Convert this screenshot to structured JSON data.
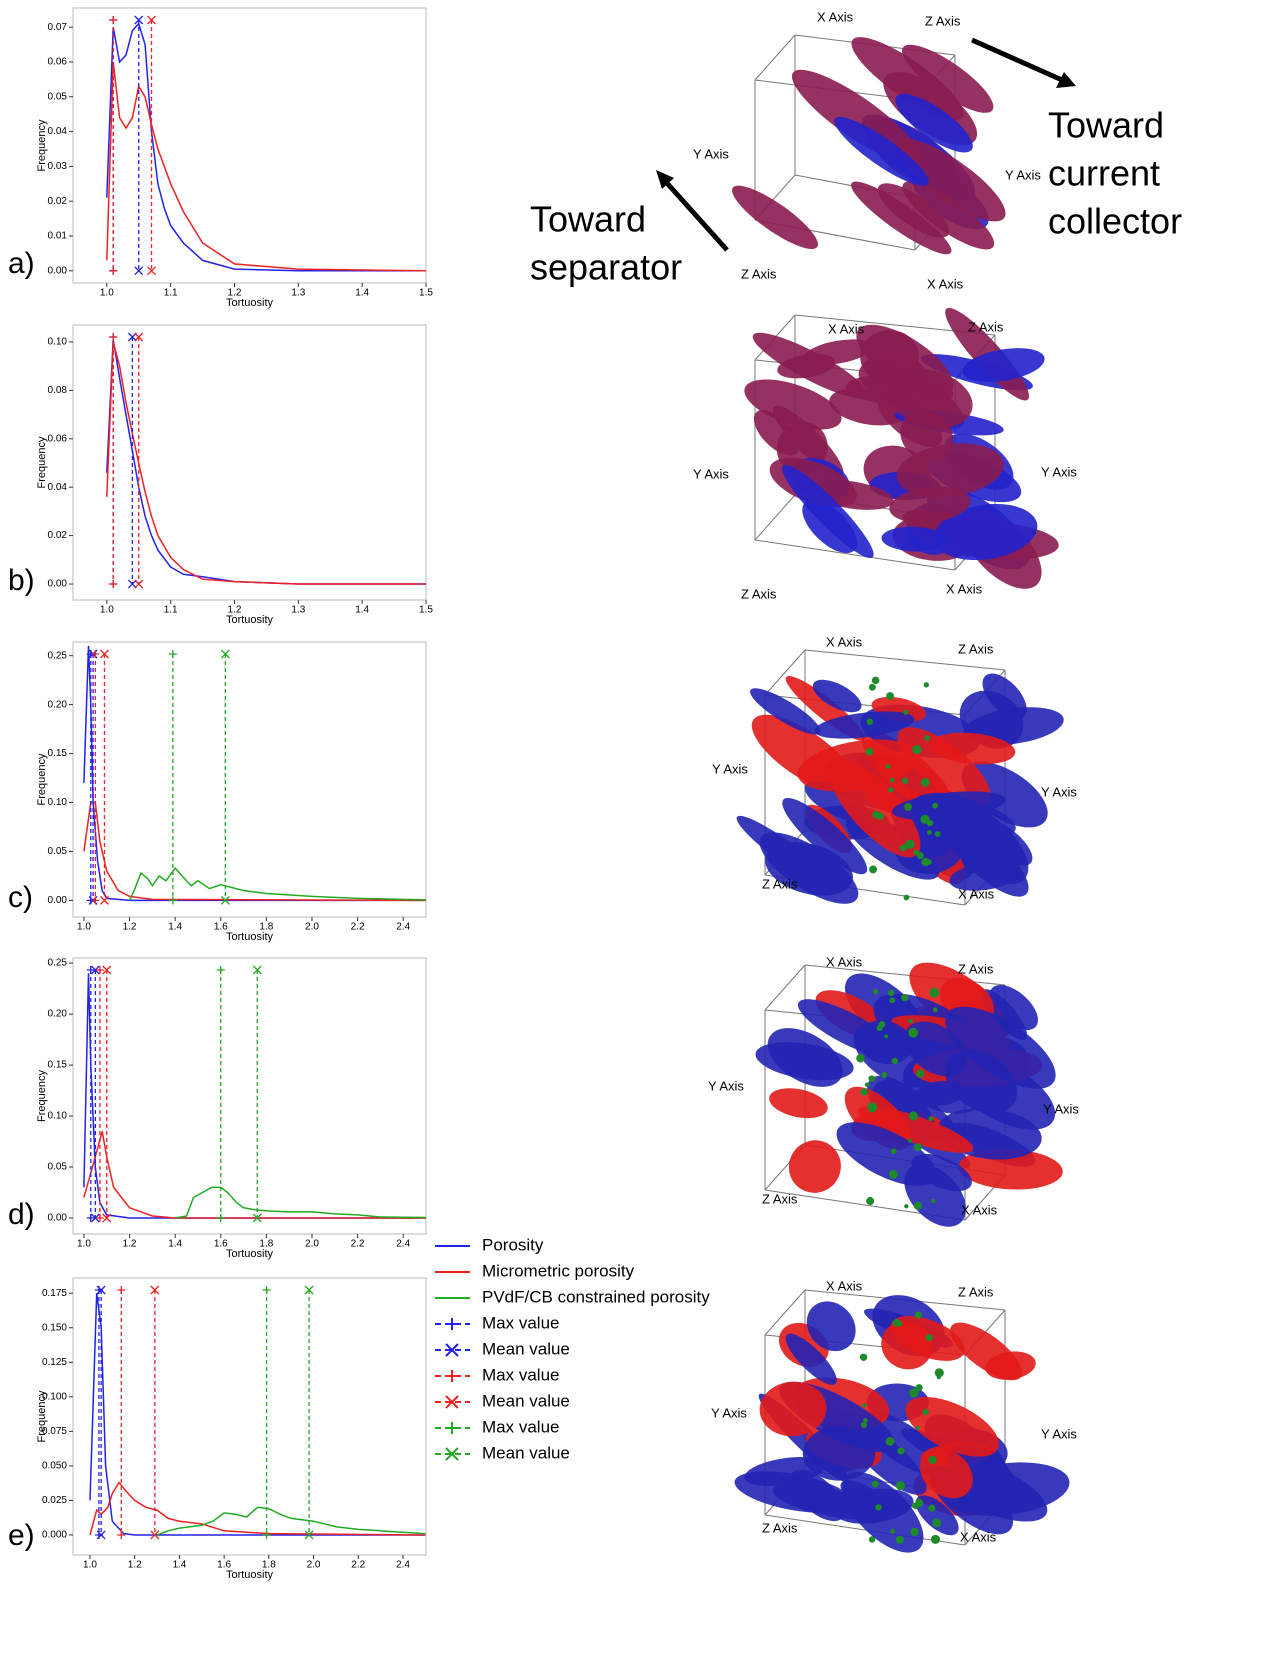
{
  "chart_data": [
    {
      "type": "line",
      "panel": "a)",
      "xlabel": "Tortuosity",
      "ylabel": "Frequency",
      "xlim": [
        0.947,
        1.5
      ],
      "xticks": [
        {
          "value": 1.0,
          "label": "1.0"
        },
        1.1,
        1.2,
        1.3,
        1.4,
        1.5
      ],
      "ylim": [
        -0.0035,
        0.0755
      ],
      "yticks": [
        {
          "value": 0,
          "label": "0.00"
        },
        0.01,
        0.02,
        0.03,
        0.04,
        0.05,
        0.06,
        0.07
      ],
      "series": [
        {
          "color": "#2222ee",
          "x": [
            1.0,
            1.01,
            1.02,
            1.03,
            1.04,
            1.05,
            1.06,
            1.07,
            1.08,
            1.09,
            1.1,
            1.12,
            1.15,
            1.2,
            1.3,
            1.5
          ],
          "values": [
            0.021,
            0.07,
            0.06,
            0.062,
            0.069,
            0.071,
            0.065,
            0.04,
            0.025,
            0.018,
            0.013,
            0.008,
            0.003,
            0.0005,
            0,
            0
          ]
        },
        {
          "color": "#ee2222",
          "x": [
            1.0,
            1.01,
            1.02,
            1.03,
            1.04,
            1.05,
            1.06,
            1.07,
            1.08,
            1.09,
            1.1,
            1.12,
            1.15,
            1.2,
            1.3,
            1.5
          ],
          "values": [
            0.003,
            0.06,
            0.044,
            0.041,
            0.044,
            0.053,
            0.05,
            0.042,
            0.035,
            0.03,
            0.025,
            0.017,
            0.008,
            0.002,
            0.0005,
            0
          ]
        }
      ],
      "vlines": [
        {
          "x": 1.01,
          "color": "#2222ee",
          "marker": "+"
        },
        {
          "x": 1.05,
          "color": "#2222ee",
          "marker": "x"
        },
        {
          "x": 1.01,
          "color": "#ee2222",
          "marker": "+"
        },
        {
          "x": 1.07,
          "color": "#ee2222",
          "marker": "x"
        }
      ]
    },
    {
      "type": "line",
      "panel": "b)",
      "xlabel": "Tortuosity",
      "ylabel": "Frequency",
      "xlim": [
        0.947,
        1.5
      ],
      "xticks": [
        {
          "value": 1.0,
          "label": "1.0"
        },
        1.1,
        1.2,
        1.3,
        1.4,
        1.5
      ],
      "ylim": [
        -0.0066,
        0.107
      ],
      "yticks": [
        {
          "value": 0,
          "label": "0.00"
        },
        0.02,
        0.04,
        0.06,
        0.08,
        {
          "value": 0.1,
          "label": "0.10"
        }
      ],
      "series": [
        {
          "color": "#2222ee",
          "x": [
            1.0,
            1.01,
            1.02,
            1.03,
            1.04,
            1.05,
            1.06,
            1.07,
            1.08,
            1.1,
            1.12,
            1.15,
            1.2,
            1.3,
            1.5
          ],
          "values": [
            0.046,
            0.101,
            0.085,
            0.07,
            0.055,
            0.04,
            0.028,
            0.02,
            0.014,
            0.007,
            0.004,
            0.003,
            0.001,
            0,
            0
          ]
        },
        {
          "color": "#ee2222",
          "x": [
            1.0,
            1.01,
            1.02,
            1.03,
            1.04,
            1.05,
            1.06,
            1.07,
            1.08,
            1.1,
            1.12,
            1.15,
            1.2,
            1.3,
            1.5
          ],
          "values": [
            0.036,
            0.1,
            0.09,
            0.075,
            0.062,
            0.05,
            0.038,
            0.028,
            0.02,
            0.011,
            0.006,
            0.002,
            0.001,
            0,
            0
          ]
        }
      ],
      "vlines": [
        {
          "x": 1.01,
          "color": "#2222ee",
          "marker": "+"
        },
        {
          "x": 1.04,
          "color": "#2222ee",
          "marker": "x"
        },
        {
          "x": 1.01,
          "color": "#ee2222",
          "marker": "+"
        },
        {
          "x": 1.05,
          "color": "#ee2222",
          "marker": "x"
        }
      ]
    },
    {
      "type": "line",
      "panel": "c)",
      "xlabel": "Tortuosity",
      "ylabel": "Frequency",
      "xlim": [
        0.952,
        2.5
      ],
      "xticks": [
        {
          "value": 1.0,
          "label": "1.0"
        },
        1.2,
        1.4,
        1.6,
        1.8,
        {
          "value": 2.0,
          "label": "2.0"
        },
        2.2,
        2.4
      ],
      "ylim": [
        -0.017,
        0.264
      ],
      "yticks": [
        {
          "value": 0,
          "label": "0.00"
        },
        0.05,
        {
          "value": 0.1,
          "label": "0.10"
        },
        0.15,
        {
          "value": 0.2,
          "label": "0.20"
        },
        0.25
      ],
      "series": [
        {
          "color": "#2222ee",
          "x": [
            1.0,
            1.02,
            1.03,
            1.04,
            1.06,
            1.08,
            1.1,
            1.2,
            2.5
          ],
          "values": [
            0.12,
            0.26,
            0.2,
            0.1,
            0.04,
            0.01,
            0.002,
            0,
            0
          ]
        },
        {
          "color": "#ee2222",
          "x": [
            1.0,
            1.03,
            1.05,
            1.07,
            1.1,
            1.15,
            1.2,
            1.3,
            2.5
          ],
          "values": [
            0.05,
            0.1,
            0.1,
            0.06,
            0.03,
            0.01,
            0.004,
            0.001,
            0
          ]
        },
        {
          "color": "#22aa22",
          "x": [
            1.2,
            1.22,
            1.25,
            1.28,
            1.3,
            1.33,
            1.36,
            1.4,
            1.43,
            1.47,
            1.5,
            1.55,
            1.6,
            1.7,
            1.8,
            2.0,
            2.2,
            2.5
          ],
          "values": [
            0,
            0.01,
            0.028,
            0.022,
            0.015,
            0.025,
            0.02,
            0.033,
            0.025,
            0.015,
            0.02,
            0.012,
            0.016,
            0.01,
            0.007,
            0.004,
            0.002,
            0.0005
          ]
        }
      ],
      "vlines": [
        {
          "x": 1.03,
          "color": "#2222ee",
          "marker": "+"
        },
        {
          "x": 1.04,
          "color": "#2222ee",
          "marker": "x"
        },
        {
          "x": 1.05,
          "color": "#ee2222",
          "marker": "+"
        },
        {
          "x": 1.09,
          "color": "#ee2222",
          "marker": "x"
        },
        {
          "x": 1.39,
          "color": "#22aa22",
          "marker": "+"
        },
        {
          "x": 1.62,
          "color": "#22aa22",
          "marker": "x"
        }
      ]
    },
    {
      "type": "line",
      "panel": "d)",
      "xlabel": "Tortuosity",
      "ylabel": "Frequency",
      "xlim": [
        0.952,
        2.5
      ],
      "xticks": [
        {
          "value": 1.0,
          "label": "1.0"
        },
        1.2,
        1.4,
        1.6,
        1.8,
        {
          "value": 2.0,
          "label": "2.0"
        },
        2.2,
        2.4
      ],
      "ylim": [
        -0.0157,
        0.255
      ],
      "yticks": [
        {
          "value": 0,
          "label": "0.00"
        },
        0.05,
        {
          "value": 0.1,
          "label": "0.10"
        },
        0.15,
        {
          "value": 0.2,
          "label": "0.20"
        },
        0.25
      ],
      "series": [
        {
          "color": "#2222ee",
          "x": [
            1.0,
            1.02,
            1.03,
            1.05,
            1.07,
            1.1,
            1.2,
            2.5
          ],
          "values": [
            0.03,
            0.24,
            0.15,
            0.05,
            0.015,
            0.003,
            0,
            0
          ]
        },
        {
          "color": "#ee2222",
          "x": [
            1.0,
            1.05,
            1.08,
            1.1,
            1.13,
            1.2,
            1.3,
            1.4,
            2.5
          ],
          "values": [
            0.02,
            0.06,
            0.085,
            0.06,
            0.03,
            0.01,
            0.002,
            0,
            0
          ]
        },
        {
          "color": "#22aa22",
          "x": [
            1.4,
            1.45,
            1.48,
            1.52,
            1.56,
            1.6,
            1.63,
            1.67,
            1.7,
            1.75,
            1.8,
            1.9,
            2.0,
            2.1,
            2.2,
            2.3,
            2.5
          ],
          "values": [
            0,
            0.002,
            0.02,
            0.025,
            0.03,
            0.03,
            0.025,
            0.015,
            0.01,
            0.008,
            0.007,
            0.006,
            0.006,
            0.004,
            0.003,
            0.001,
            0.0005
          ]
        }
      ],
      "vlines": [
        {
          "x": 1.03,
          "color": "#2222ee",
          "marker": "+"
        },
        {
          "x": 1.05,
          "color": "#2222ee",
          "marker": "x"
        },
        {
          "x": 1.07,
          "color": "#ee2222",
          "marker": "+"
        },
        {
          "x": 1.1,
          "color": "#ee2222",
          "marker": "x"
        },
        {
          "x": 1.6,
          "color": "#22aa22",
          "marker": "+"
        },
        {
          "x": 1.76,
          "color": "#22aa22",
          "marker": "x"
        }
      ]
    },
    {
      "type": "line",
      "panel": "e)",
      "xlabel": "Tortuosity",
      "ylabel": "Frequency",
      "xlim": [
        0.924,
        2.503
      ],
      "xticks": [
        {
          "value": 1.0,
          "label": "1.0"
        },
        1.2,
        1.4,
        1.6,
        1.8,
        {
          "value": 2.0,
          "label": "2.0"
        },
        2.2,
        2.4
      ],
      "ylim": [
        -0.0145,
        0.186
      ],
      "yticks": [
        {
          "value": 0,
          "label": "0.000"
        },
        0.025,
        {
          "value": 0.05,
          "label": "0.050"
        },
        {
          "value": 0.075,
          "label": "0.075"
        },
        {
          "value": 0.1,
          "label": "0.100"
        },
        0.125,
        {
          "value": 0.15,
          "label": "0.150"
        },
        0.175
      ],
      "series": [
        {
          "color": "#2222ee",
          "x": [
            1.0,
            1.03,
            1.05,
            1.07,
            1.1,
            1.15,
            1.2,
            2.5
          ],
          "values": [
            0.025,
            0.175,
            0.15,
            0.05,
            0.01,
            0.001,
            0,
            0
          ]
        },
        {
          "color": "#ee2222",
          "x": [
            1.0,
            1.03,
            1.05,
            1.08,
            1.1,
            1.13,
            1.16,
            1.2,
            1.25,
            1.3,
            1.35,
            1.4,
            1.5,
            1.6,
            1.8,
            2.5
          ],
          "values": [
            0,
            0.018,
            0.015,
            0.02,
            0.03,
            0.038,
            0.032,
            0.025,
            0.02,
            0.018,
            0.012,
            0.01,
            0.008,
            0.003,
            0.001,
            0
          ]
        },
        {
          "color": "#22aa22",
          "x": [
            1.3,
            1.35,
            1.4,
            1.5,
            1.55,
            1.6,
            1.65,
            1.7,
            1.75,
            1.8,
            1.85,
            1.9,
            2.0,
            2.1,
            2.2,
            2.3,
            2.4,
            2.5
          ],
          "values": [
            0,
            0.003,
            0.005,
            0.007,
            0.01,
            0.016,
            0.015,
            0.013,
            0.02,
            0.019,
            0.015,
            0.012,
            0.01,
            0.006,
            0.004,
            0.003,
            0.002,
            0.001
          ]
        }
      ],
      "vlines": [
        {
          "x": 1.04,
          "color": "#2222ee",
          "marker": "+"
        },
        {
          "x": 1.05,
          "color": "#2222ee",
          "marker": "x"
        },
        {
          "x": 1.14,
          "color": "#ee2222",
          "marker": "+"
        },
        {
          "x": 1.29,
          "color": "#ee2222",
          "marker": "x"
        },
        {
          "x": 1.79,
          "color": "#22aa22",
          "marker": "+"
        },
        {
          "x": 1.98,
          "color": "#22aa22",
          "marker": "x"
        }
      ]
    }
  ],
  "legend": [
    {
      "label": "Porosity",
      "color": "#2222ee",
      "marker": "line"
    },
    {
      "label": "Micrometric porosity",
      "color": "#ee2222",
      "marker": "line"
    },
    {
      "label": "PVdF/CB constrained porosity",
      "color": "#22aa22",
      "marker": "line"
    },
    {
      "label": "Max value",
      "color": "#2222ee",
      "marker": "+"
    },
    {
      "label": "Mean value",
      "color": "#2222ee",
      "marker": "x"
    },
    {
      "label": "Max value",
      "color": "#ee2222",
      "marker": "+"
    },
    {
      "label": "Mean value",
      "color": "#ee2222",
      "marker": "x"
    },
    {
      "label": "Max value",
      "color": "#22aa22",
      "marker": "+"
    },
    {
      "label": "Mean value",
      "color": "#22aa22",
      "marker": "x"
    }
  ],
  "renders": [
    {
      "labels": [
        "X Axis",
        "Z Axis",
        "Y Axis",
        "Y Axis",
        "Z Axis",
        "X Axis"
      ]
    },
    {
      "labels": [
        "X Axis",
        "Z Axis",
        "Y Axis",
        "Y Axis",
        "Z Axis",
        "X Axis"
      ]
    },
    {
      "labels": [
        "X Axis",
        "Z Axis",
        "Y Axis",
        "Y Axis",
        "Z Axis",
        "X Axis"
      ]
    },
    {
      "labels": [
        "X Axis",
        "Z Axis",
        "Y Axis",
        "Y Axis",
        "Z Axis",
        "X Axis"
      ]
    },
    {
      "labels": [
        "X Axis",
        "Z Axis",
        "Y Axis",
        "Y Axis",
        "Z Axis",
        "X Axis"
      ]
    }
  ],
  "annotations": {
    "separator": [
      "Toward",
      "separator"
    ],
    "collector": [
      "Toward",
      "current",
      "collector"
    ]
  }
}
